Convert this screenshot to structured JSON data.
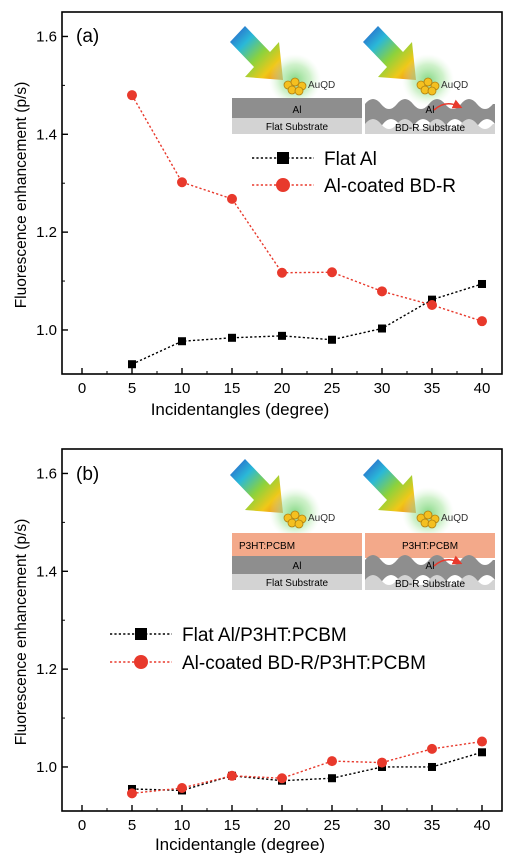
{
  "chart_data": [
    {
      "type": "line",
      "panel_label": "(a)",
      "xlabel": "Incidentangles (degree)",
      "ylabel": "Fluorescence enhancement (p/s)",
      "xlim": [
        -2,
        42
      ],
      "ylim": [
        0.91,
        1.65
      ],
      "xticks": [
        0,
        5,
        10,
        15,
        20,
        25,
        30,
        35,
        40
      ],
      "yticks": [
        1.0,
        1.2,
        1.4,
        1.6
      ],
      "ytick_labels": [
        "1.0",
        "1.2",
        "1.4",
        "1.6"
      ],
      "grid": false,
      "legend_position": "top-right",
      "series": [
        {
          "name": "Flat Al",
          "marker": "square",
          "color": "#000000",
          "x": [
            5,
            10,
            15,
            20,
            25,
            30,
            35,
            40
          ],
          "y": [
            0.93,
            0.977,
            0.984,
            0.988,
            0.98,
            1.003,
            1.062,
            1.094
          ]
        },
        {
          "name": "Al-coated BD-R",
          "marker": "circle",
          "color": "#e8392c",
          "x": [
            5,
            10,
            15,
            20,
            25,
            30,
            35,
            40
          ],
          "y": [
            1.48,
            1.302,
            1.268,
            1.117,
            1.118,
            1.079,
            1.051,
            1.018
          ]
        }
      ],
      "inset": {
        "particle_label": "AuQD",
        "left": {
          "layers": [
            "Al",
            "Flat Substrate"
          ]
        },
        "right": {
          "layers": [
            "Al",
            "BD-R Substrate"
          ]
        }
      }
    },
    {
      "type": "line",
      "panel_label": "(b)",
      "xlabel": "Incidentangle (degree)",
      "ylabel": "Fluorescence enhancement (p/s)",
      "xlim": [
        -2,
        42
      ],
      "ylim": [
        0.91,
        1.65
      ],
      "xticks": [
        0,
        5,
        10,
        15,
        20,
        25,
        30,
        35,
        40
      ],
      "yticks": [
        1.0,
        1.2,
        1.4,
        1.6
      ],
      "ytick_labels": [
        "1.0",
        "1.2",
        "1.4",
        "1.6"
      ],
      "grid": false,
      "legend_position": "center-right",
      "series": [
        {
          "name": "Flat Al/P3HT:PCBM",
          "marker": "square",
          "color": "#000000",
          "x": [
            5,
            10,
            15,
            20,
            25,
            30,
            35,
            40
          ],
          "y": [
            0.955,
            0.952,
            0.982,
            0.972,
            0.977,
            1.0,
            1.0,
            1.03
          ]
        },
        {
          "name": "Al-coated BD-R/P3HT:PCBM",
          "marker": "circle",
          "color": "#e8392c",
          "x": [
            5,
            10,
            15,
            20,
            25,
            30,
            35,
            40
          ],
          "y": [
            0.946,
            0.957,
            0.982,
            0.977,
            1.012,
            1.009,
            1.037,
            1.052
          ]
        }
      ],
      "inset": {
        "particle_label": "AuQD",
        "left": {
          "layers": [
            "P3HT:PCBM",
            "Al",
            "Flat Substrate"
          ]
        },
        "right": {
          "layers": [
            "P3HT:PCBM",
            "Al",
            "BD-R Substrate"
          ]
        }
      }
    }
  ]
}
